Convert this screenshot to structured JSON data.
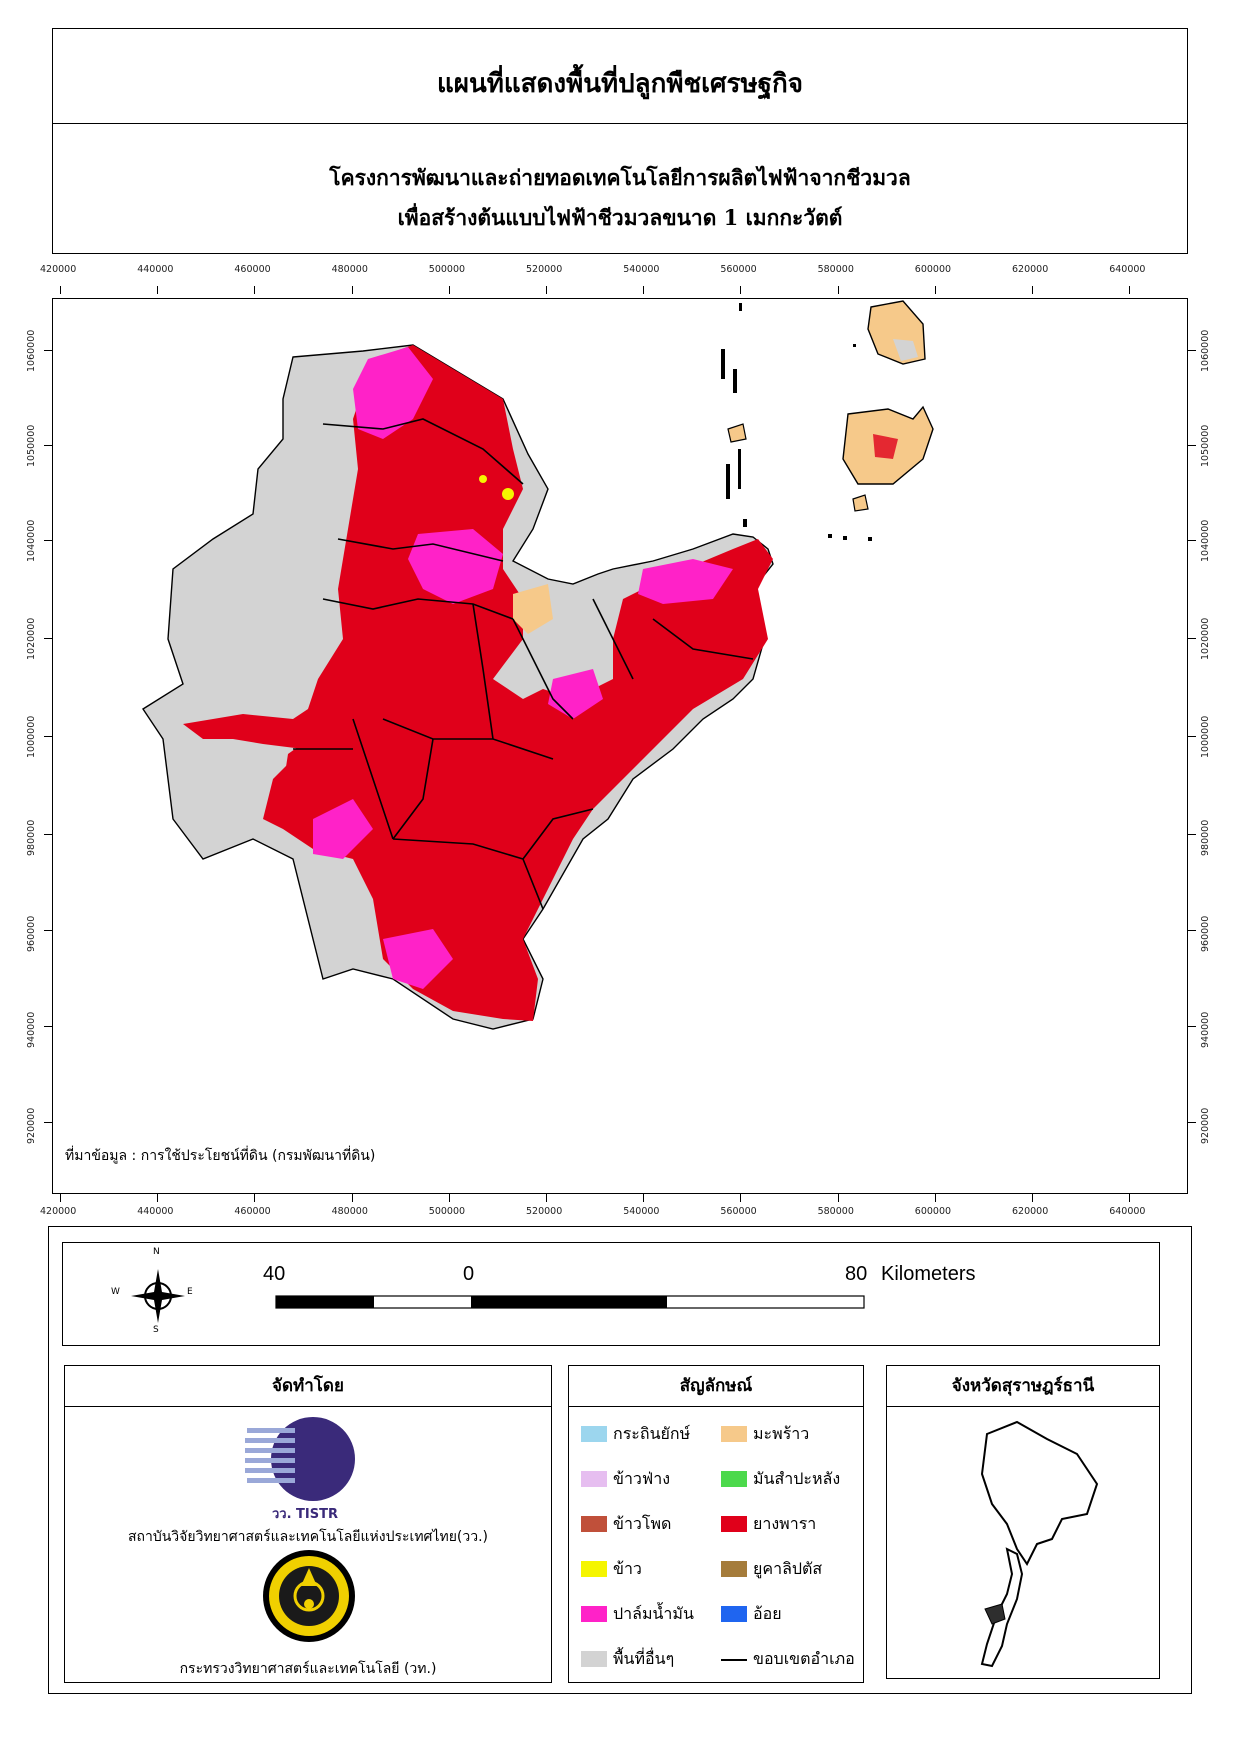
{
  "header": {
    "title": "แผนที่แสดงพื้นที่ปลูกพืชเศรษฐกิจ",
    "subtitle_line1": "โครงการพัฒนาและถ่ายทอดเทคโนโลยีการผลิตไฟฟ้าจากชีวมวล",
    "subtitle_line2": "เพื่อสร้างต้นแบบไฟฟ้าชีวมวลขนาด 1 เมกกะวัตต์"
  },
  "map": {
    "x_ticks": [
      "420000",
      "440000",
      "460000",
      "480000",
      "500000",
      "520000",
      "540000",
      "560000",
      "580000",
      "600000",
      "620000",
      "640000"
    ],
    "y_ticks": [
      "1060000",
      "1050000",
      "1040000",
      "1020000",
      "1000000",
      "980000",
      "960000",
      "940000",
      "920000"
    ],
    "source": "ที่มาข้อมูล : การใช้ประโยชน์ที่ดิน  (กรมพัฒนาที่ดิน)"
  },
  "scalebar": {
    "labels": [
      "40",
      "0",
      "80"
    ],
    "unit": "Kilometers",
    "compass": {
      "n": "N",
      "s": "S",
      "e": "E",
      "w": "W"
    }
  },
  "producer": {
    "heading": "จัดทำโดย",
    "logo1_text": "วว. TISTR",
    "org1": "สถาบันวิจัยวิทยาศาสตร์และเทคโนโลยีแห่งประเทศไทย(วว.)",
    "org2": "กระทรวงวิทยาศาสตร์และเทคโนโลยี (วท.)"
  },
  "legend": {
    "heading": "สัญลักษณ์",
    "items": [
      {
        "label": "กระถินยักษ์",
        "color": "#9cd6ee"
      },
      {
        "label": "มะพร้าว",
        "color": "#f6c98a"
      },
      {
        "label": "ข้าวฟ่าง",
        "color": "#e6bef0"
      },
      {
        "label": "มันสำปะหลัง",
        "color": "#4cd94c"
      },
      {
        "label": "ข้าวโพด",
        "color": "#c0503a"
      },
      {
        "label": "ยางพารา",
        "color": "#e0001a"
      },
      {
        "label": "ข้าว",
        "color": "#f5f500"
      },
      {
        "label": "ยูคาลิปตัส",
        "color": "#a57c3b"
      },
      {
        "label": "ปาล์มน้ำมัน",
        "color": "#ff22c8"
      },
      {
        "label": "อ้อย",
        "color": "#1f65f0"
      },
      {
        "label": "พื้นที่อื่นๆ",
        "color": "#d3d3d3"
      },
      {
        "label": "ขอบเขตอำเภอ",
        "color": "#000000"
      }
    ]
  },
  "locator": {
    "heading": "จังหวัดสุราษฎร์ธานี"
  }
}
